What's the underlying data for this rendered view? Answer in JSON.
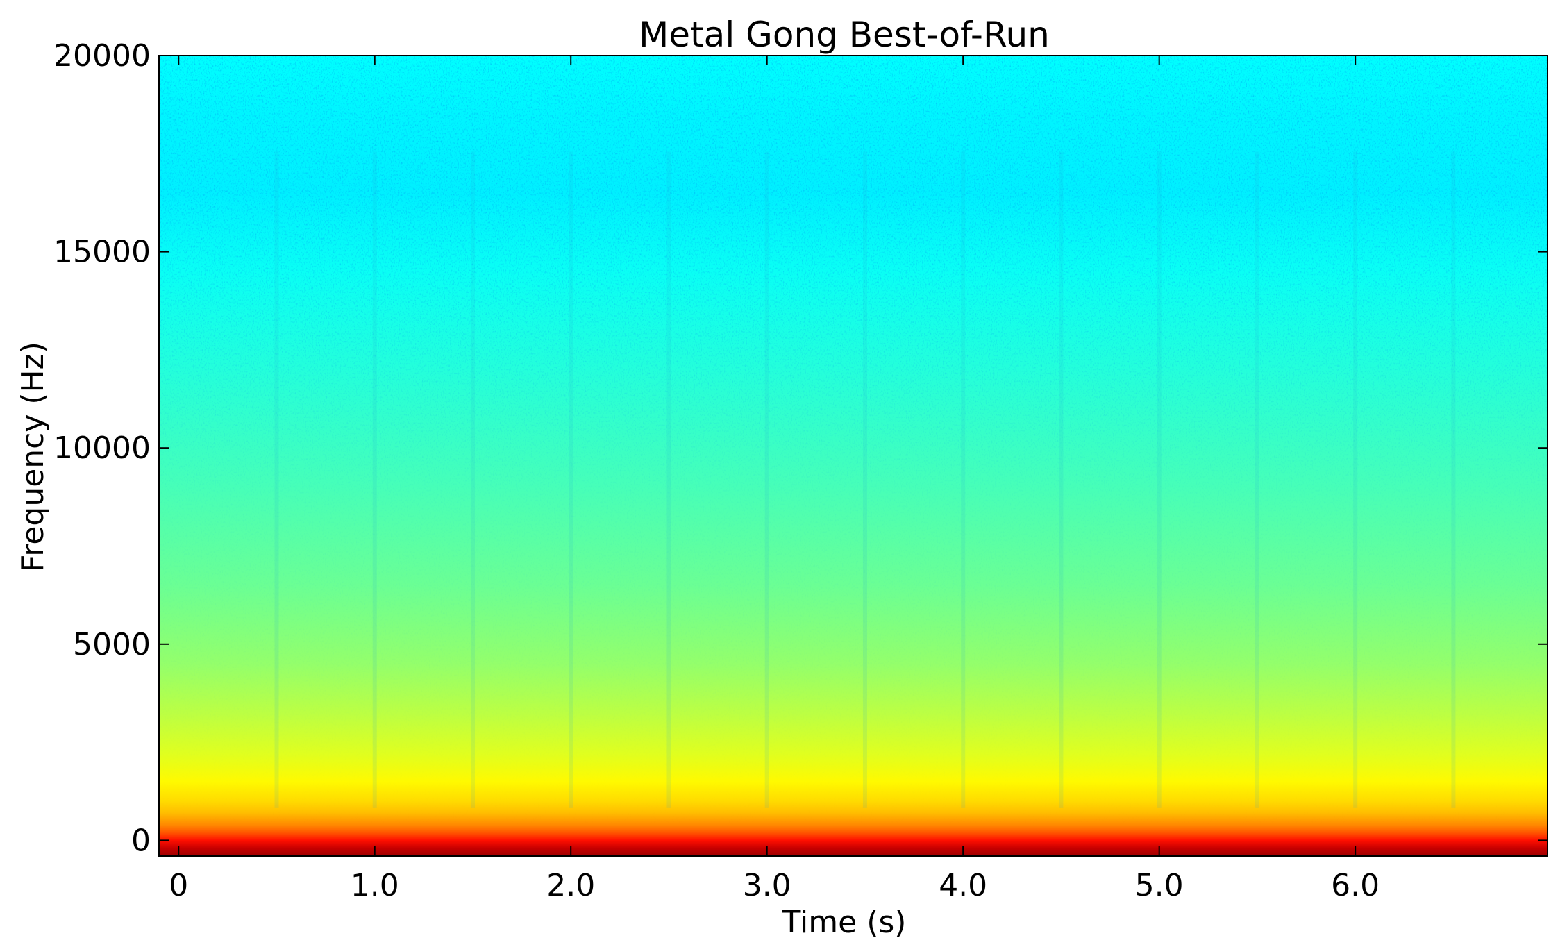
{
  "chart_data": {
    "type": "heatmap",
    "title": "Metal Gong Best-of-Run",
    "xlabel": "Time (s)",
    "ylabel": "Frequency (Hz)",
    "xlim": [
      -0.1,
      6.98
    ],
    "ylim": [
      -400,
      20000
    ],
    "xticks": [
      {
        "value": 0,
        "label": "0"
      },
      {
        "value": 1,
        "label": "1.0"
      },
      {
        "value": 2,
        "label": "2.0"
      },
      {
        "value": 3,
        "label": "3.0"
      },
      {
        "value": 4,
        "label": "4.0"
      },
      {
        "value": 5,
        "label": "5.0"
      },
      {
        "value": 6,
        "label": "6.0"
      }
    ],
    "yticks": [
      {
        "value": 0,
        "label": "0"
      },
      {
        "value": 5000,
        "label": "5000"
      },
      {
        "value": 10000,
        "label": "10000"
      },
      {
        "value": 15000,
        "label": "15000"
      },
      {
        "value": 20000,
        "label": "20000"
      }
    ],
    "colormap": "jet",
    "grid": false,
    "legend": "none",
    "magnitude_profile": [
      {
        "frequency": -400,
        "level": 0.97
      },
      {
        "frequency": -200,
        "level": 0.93
      },
      {
        "frequency": 0,
        "level": 0.86
      },
      {
        "frequency": 200,
        "level": 0.79
      },
      {
        "frequency": 400,
        "level": 0.74
      },
      {
        "frequency": 700,
        "level": 0.69
      },
      {
        "frequency": 1000,
        "level": 0.66
      },
      {
        "frequency": 1500,
        "level": 0.63
      },
      {
        "frequency": 2200,
        "level": 0.595
      },
      {
        "frequency": 3200,
        "level": 0.56
      },
      {
        "frequency": 4500,
        "level": 0.52
      },
      {
        "frequency": 6500,
        "level": 0.48
      },
      {
        "frequency": 9000,
        "level": 0.445
      },
      {
        "frequency": 12000,
        "level": 0.41
      },
      {
        "frequency": 14500,
        "level": 0.385
      },
      {
        "frequency": 16500,
        "level": 0.36
      },
      {
        "frequency": 18500,
        "level": 0.365
      },
      {
        "frequency": 20000,
        "level": 0.375
      }
    ],
    "striation_times": [
      0.5,
      1.0,
      1.5,
      2.0,
      2.5,
      3.0,
      3.5,
      4.0,
      4.5,
      5.0,
      5.5,
      6.0,
      6.5
    ]
  }
}
